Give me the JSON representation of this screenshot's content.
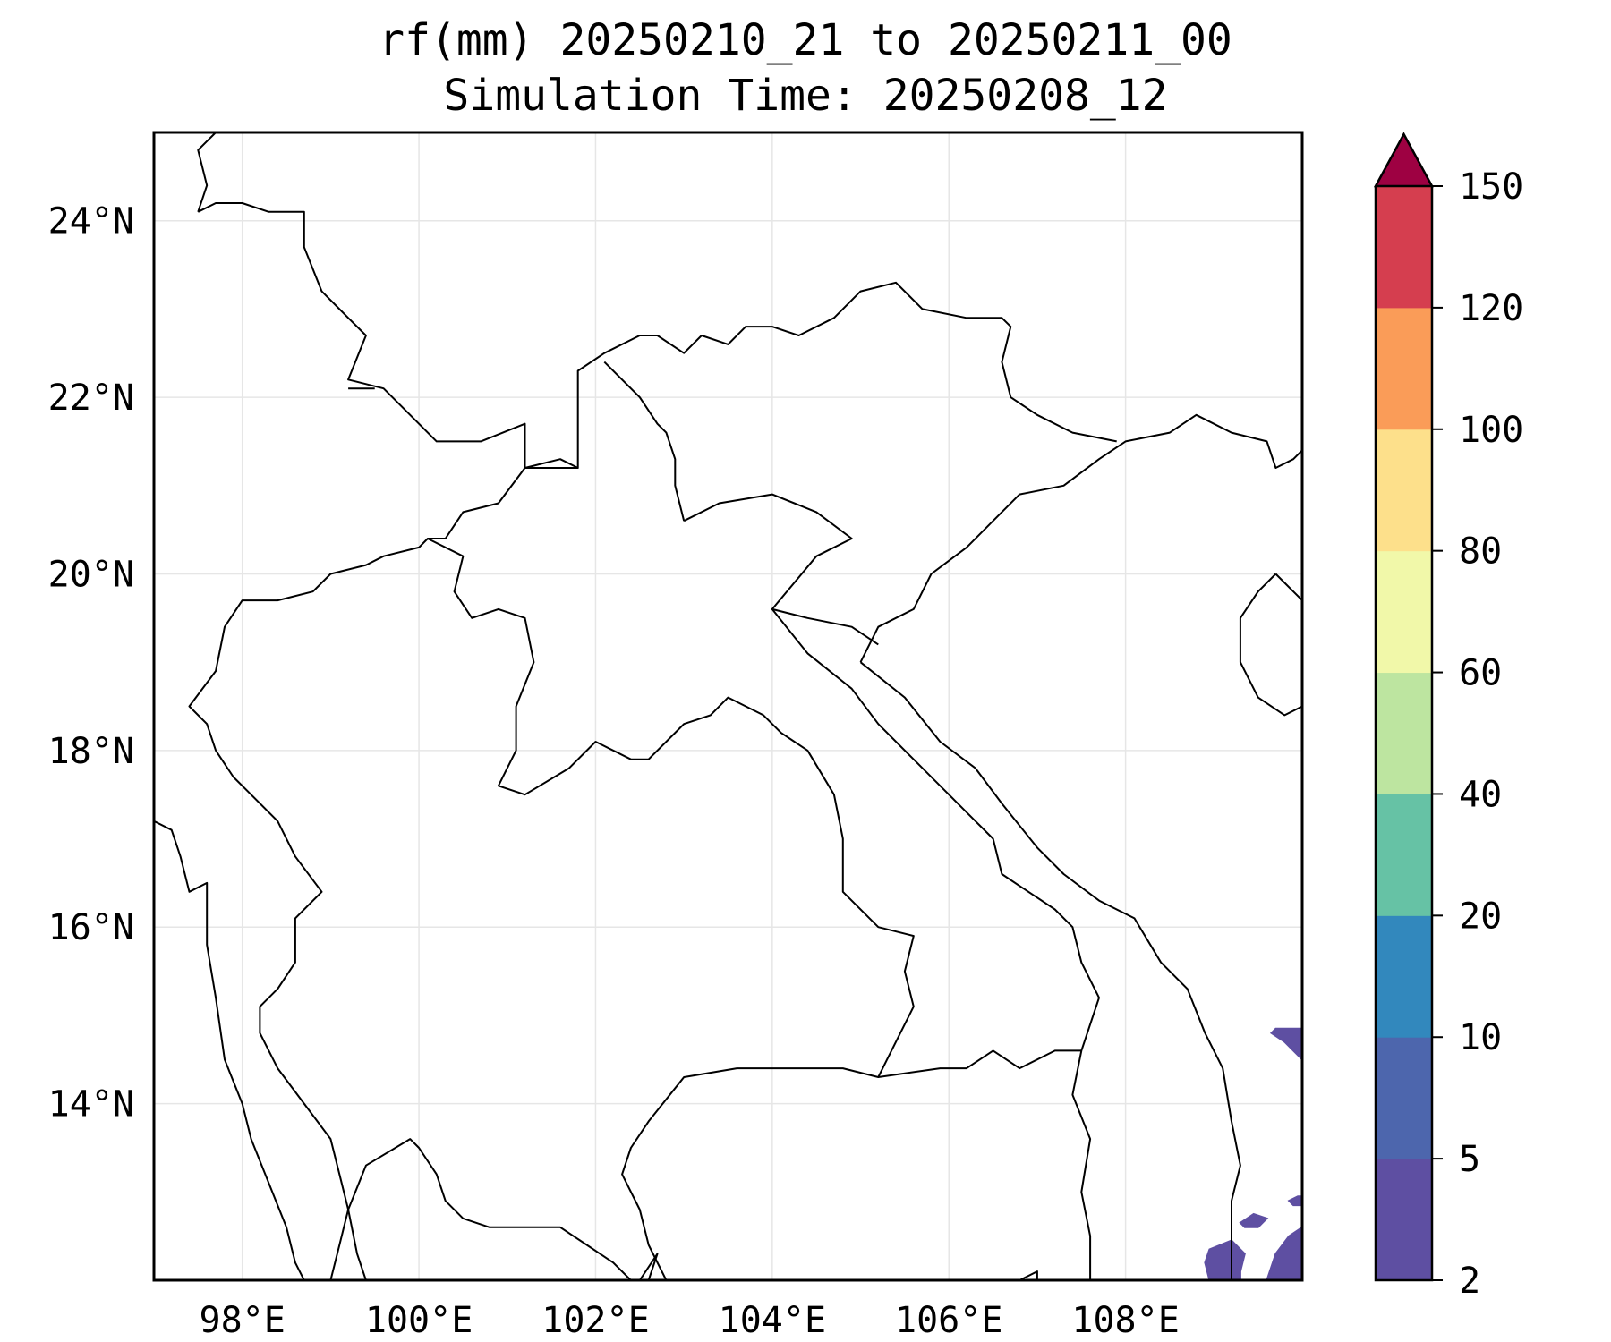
{
  "title": {
    "line1": "rf(mm) 20250210_21 to 20250211_00",
    "line2": "Simulation Time: 20250208_12"
  },
  "map": {
    "lon_range": [
      97.0,
      110.0
    ],
    "lat_range": [
      12.0,
      25.0
    ],
    "lon_ticks": [
      98,
      100,
      102,
      104,
      106,
      108
    ],
    "lat_ticks": [
      14,
      16,
      18,
      20,
      22,
      24
    ],
    "lon_tick_labels": [
      "98°E",
      "100°E",
      "102°E",
      "104°E",
      "106°E",
      "108°E"
    ],
    "lat_tick_labels": [
      "14°N",
      "16°N",
      "18°N",
      "20°N",
      "22°N",
      "24°N"
    ],
    "gridlines": true,
    "coastline_color": "#000000"
  },
  "colorbar": {
    "levels": [
      "2",
      "5",
      "10",
      "20",
      "40",
      "60",
      "80",
      "100",
      "120",
      "150"
    ],
    "colors": [
      "#5e4fa2",
      "#4d66ad",
      "#3288bd",
      "#66c2a5",
      "#bde5a0",
      "#f1f8a9",
      "#fde08b",
      "#fa9c58",
      "#d53e4f"
    ],
    "extend_color": "#9e0142",
    "extend": "max",
    "placement": "right"
  },
  "rain_areas": [
    {
      "name": "south-china-sea-east",
      "level": "2-5",
      "color": "#5e4fa2",
      "lonlat": [
        [
          108.95,
          12.0
        ],
        [
          108.9,
          12.2
        ],
        [
          108.95,
          12.35
        ],
        [
          109.2,
          12.45
        ],
        [
          109.35,
          12.3
        ],
        [
          109.3,
          12.1
        ],
        [
          109.3,
          12.0
        ]
      ]
    },
    {
      "name": "offshore-cluster",
      "level": "2-5",
      "color": "#5e4fa2",
      "lonlat": [
        [
          109.3,
          12.65
        ],
        [
          109.45,
          12.75
        ],
        [
          109.6,
          12.7
        ],
        [
          109.5,
          12.6
        ],
        [
          109.35,
          12.6
        ]
      ]
    },
    {
      "name": "east-edge-south",
      "level": "2-5",
      "color": "#5e4fa2",
      "lonlat": [
        [
          109.6,
          12.0
        ],
        [
          109.7,
          12.3
        ],
        [
          109.85,
          12.5
        ],
        [
          110.0,
          12.6
        ],
        [
          110.0,
          12.0
        ]
      ]
    },
    {
      "name": "east-edge-mid",
      "level": "2-5",
      "color": "#5e4fa2",
      "lonlat": [
        [
          109.85,
          12.9
        ],
        [
          109.95,
          12.95
        ],
        [
          110.0,
          12.95
        ],
        [
          110.0,
          12.85
        ],
        [
          109.9,
          12.85
        ]
      ]
    },
    {
      "name": "east-edge-north",
      "level": "2-5",
      "color": "#5e4fa2",
      "lonlat": [
        [
          109.65,
          14.8
        ],
        [
          109.8,
          14.7
        ],
        [
          110.0,
          14.5
        ],
        [
          110.0,
          14.85
        ],
        [
          109.7,
          14.85
        ]
      ]
    }
  ],
  "coastlines": [
    [
      [
        97.0,
        17.2
      ],
      [
        97.2,
        17.1
      ],
      [
        97.3,
        16.8
      ],
      [
        97.4,
        16.4
      ],
      [
        97.6,
        16.5
      ],
      [
        97.6,
        15.8
      ],
      [
        97.7,
        15.2
      ],
      [
        97.8,
        14.5
      ],
      [
        98.0,
        14.0
      ],
      [
        98.1,
        13.6
      ],
      [
        98.3,
        13.1
      ],
      [
        98.5,
        12.6
      ],
      [
        98.6,
        12.2
      ],
      [
        98.7,
        12.0
      ]
    ],
    [
      [
        99.0,
        12.0
      ],
      [
        99.1,
        12.4
      ],
      [
        99.2,
        12.8
      ],
      [
        99.4,
        13.3
      ],
      [
        99.9,
        13.6
      ],
      [
        100.0,
        13.5
      ],
      [
        100.2,
        13.2
      ],
      [
        100.3,
        12.9
      ],
      [
        100.5,
        12.7
      ],
      [
        100.8,
        12.6
      ],
      [
        101.2,
        12.6
      ],
      [
        101.6,
        12.6
      ],
      [
        101.9,
        12.4
      ],
      [
        102.2,
        12.2
      ],
      [
        102.4,
        12.0
      ]
    ],
    [
      [
        102.5,
        12.0
      ],
      [
        102.7,
        12.3
      ],
      [
        102.6,
        12.0
      ]
    ],
    [
      [
        104.7,
        12.0
      ],
      [
        105.2,
        12.0
      ]
    ],
    [
      [
        106.8,
        12.0
      ],
      [
        107.0,
        12.1
      ],
      [
        107.0,
        12.0
      ]
    ],
    [
      [
        105.0,
        19.0
      ],
      [
        105.2,
        19.4
      ],
      [
        105.6,
        19.6
      ],
      [
        105.8,
        20.0
      ],
      [
        106.2,
        20.3
      ],
      [
        106.5,
        20.6
      ],
      [
        106.8,
        20.9
      ],
      [
        107.3,
        21.0
      ],
      [
        107.7,
        21.3
      ],
      [
        108.0,
        21.5
      ],
      [
        108.5,
        21.6
      ],
      [
        108.8,
        21.8
      ],
      [
        109.2,
        21.6
      ],
      [
        109.6,
        21.5
      ],
      [
        109.7,
        21.2
      ],
      [
        109.9,
        21.3
      ],
      [
        110.0,
        21.4
      ]
    ],
    [
      [
        105.0,
        19.0
      ],
      [
        105.5,
        18.6
      ],
      [
        105.9,
        18.1
      ],
      [
        106.3,
        17.8
      ],
      [
        106.6,
        17.4
      ],
      [
        107.0,
        16.9
      ],
      [
        107.3,
        16.6
      ],
      [
        107.7,
        16.3
      ],
      [
        108.1,
        16.1
      ],
      [
        108.4,
        15.6
      ],
      [
        108.7,
        15.3
      ],
      [
        108.9,
        14.8
      ],
      [
        109.1,
        14.4
      ],
      [
        109.2,
        13.8
      ],
      [
        109.3,
        13.3
      ],
      [
        109.2,
        12.9
      ],
      [
        109.2,
        12.5
      ],
      [
        109.2,
        12.0
      ]
    ],
    [
      [
        109.7,
        20.0
      ],
      [
        109.9,
        19.8
      ],
      [
        110.0,
        19.7
      ]
    ],
    [
      [
        109.7,
        20.0
      ],
      [
        109.5,
        19.8
      ],
      [
        109.3,
        19.5
      ],
      [
        109.3,
        19.0
      ],
      [
        109.5,
        18.6
      ],
      [
        109.8,
        18.4
      ],
      [
        110.0,
        18.5
      ]
    ]
  ],
  "borders": [
    [
      [
        97.5,
        24.1
      ],
      [
        97.7,
        24.2
      ],
      [
        98.0,
        24.2
      ],
      [
        98.3,
        24.1
      ],
      [
        98.7,
        24.1
      ],
      [
        98.7,
        23.7
      ],
      [
        98.9,
        23.2
      ],
      [
        99.2,
        22.9
      ],
      [
        99.4,
        22.7
      ],
      [
        99.2,
        22.2
      ],
      [
        99.6,
        22.1
      ],
      [
        100.0,
        21.7
      ],
      [
        100.2,
        21.5
      ],
      [
        100.7,
        21.5
      ],
      [
        101.2,
        21.7
      ],
      [
        101.2,
        21.2
      ],
      [
        101.6,
        21.3
      ],
      [
        101.8,
        21.2
      ],
      [
        101.8,
        21.7
      ],
      [
        101.8,
        22.3
      ],
      [
        102.1,
        22.5
      ],
      [
        102.5,
        22.7
      ],
      [
        102.7,
        22.7
      ],
      [
        103.0,
        22.5
      ],
      [
        103.2,
        22.7
      ],
      [
        103.5,
        22.6
      ],
      [
        103.7,
        22.8
      ],
      [
        104.0,
        22.8
      ],
      [
        104.3,
        22.7
      ],
      [
        104.7,
        22.9
      ],
      [
        105.0,
        23.2
      ],
      [
        105.4,
        23.3
      ],
      [
        105.7,
        23.0
      ],
      [
        106.2,
        22.9
      ],
      [
        106.6,
        22.9
      ],
      [
        106.7,
        22.8
      ],
      [
        106.6,
        22.4
      ],
      [
        106.7,
        22.0
      ],
      [
        107.0,
        21.8
      ],
      [
        107.4,
        21.6
      ],
      [
        107.9,
        21.5
      ]
    ],
    [
      [
        97.5,
        24.1
      ],
      [
        97.6,
        24.4
      ],
      [
        97.5,
        24.8
      ],
      [
        97.7,
        25.0
      ]
    ],
    [
      [
        99.2,
        22.1
      ],
      [
        99.5,
        22.1
      ]
    ],
    [
      [
        101.8,
        21.2
      ],
      [
        101.2,
        21.2
      ],
      [
        100.9,
        20.8
      ],
      [
        100.5,
        20.7
      ],
      [
        100.3,
        20.4
      ],
      [
        100.1,
        20.4
      ],
      [
        100.0,
        20.3
      ],
      [
        99.6,
        20.2
      ],
      [
        99.4,
        20.1
      ],
      [
        99.0,
        20.0
      ],
      [
        98.8,
        19.8
      ],
      [
        98.4,
        19.7
      ],
      [
        98.0,
        19.7
      ],
      [
        97.8,
        19.4
      ],
      [
        97.7,
        18.9
      ],
      [
        97.4,
        18.5
      ],
      [
        97.6,
        18.3
      ],
      [
        97.7,
        18.0
      ],
      [
        97.9,
        17.7
      ],
      [
        98.1,
        17.5
      ],
      [
        98.4,
        17.2
      ],
      [
        98.6,
        16.8
      ],
      [
        98.9,
        16.4
      ],
      [
        98.6,
        16.1
      ],
      [
        98.6,
        15.6
      ],
      [
        98.4,
        15.3
      ],
      [
        98.2,
        15.1
      ],
      [
        98.2,
        14.8
      ],
      [
        98.4,
        14.4
      ],
      [
        98.7,
        14.0
      ],
      [
        99.0,
        13.6
      ],
      [
        99.1,
        13.2
      ],
      [
        99.2,
        12.8
      ],
      [
        99.3,
        12.3
      ],
      [
        99.4,
        12.0
      ]
    ],
    [
      [
        100.1,
        20.4
      ],
      [
        100.5,
        20.2
      ],
      [
        100.4,
        19.8
      ],
      [
        100.6,
        19.5
      ],
      [
        100.9,
        19.6
      ],
      [
        101.2,
        19.5
      ],
      [
        101.3,
        19.0
      ],
      [
        101.1,
        18.5
      ],
      [
        101.1,
        18.0
      ],
      [
        100.9,
        17.6
      ],
      [
        101.2,
        17.5
      ],
      [
        101.7,
        17.8
      ],
      [
        102.0,
        18.1
      ],
      [
        102.4,
        17.9
      ],
      [
        102.6,
        17.9
      ],
      [
        103.0,
        18.3
      ],
      [
        103.3,
        18.4
      ],
      [
        103.5,
        18.6
      ],
      [
        103.9,
        18.4
      ],
      [
        104.1,
        18.2
      ],
      [
        104.4,
        18.0
      ],
      [
        104.7,
        17.5
      ],
      [
        104.8,
        17.0
      ],
      [
        104.8,
        16.4
      ],
      [
        105.2,
        16.0
      ],
      [
        105.6,
        15.9
      ],
      [
        105.5,
        15.5
      ],
      [
        105.6,
        15.1
      ],
      [
        105.3,
        14.5
      ],
      [
        105.2,
        14.3
      ],
      [
        104.8,
        14.4
      ],
      [
        104.3,
        14.4
      ],
      [
        103.6,
        14.4
      ],
      [
        103.0,
        14.3
      ],
      [
        102.6,
        13.8
      ],
      [
        102.4,
        13.5
      ],
      [
        102.3,
        13.2
      ],
      [
        102.5,
        12.8
      ],
      [
        102.6,
        12.4
      ],
      [
        102.8,
        12.0
      ]
    ],
    [
      [
        103.0,
        20.6
      ],
      [
        103.4,
        20.8
      ],
      [
        104.0,
        20.9
      ],
      [
        104.5,
        20.7
      ],
      [
        104.9,
        20.4
      ],
      [
        104.5,
        20.2
      ],
      [
        104.0,
        19.6
      ],
      [
        104.4,
        19.5
      ],
      [
        104.9,
        19.4
      ],
      [
        105.2,
        19.2
      ]
    ],
    [
      [
        102.1,
        22.4
      ],
      [
        102.5,
        22.0
      ],
      [
        102.7,
        21.7
      ],
      [
        102.8,
        21.6
      ],
      [
        102.9,
        21.3
      ],
      [
        102.9,
        21.0
      ],
      [
        103.0,
        20.6
      ]
    ],
    [
      [
        104.0,
        19.6
      ],
      [
        104.4,
        19.1
      ],
      [
        104.9,
        18.7
      ],
      [
        105.2,
        18.3
      ],
      [
        105.6,
        17.9
      ],
      [
        105.9,
        17.6
      ],
      [
        106.2,
        17.3
      ],
      [
        106.5,
        17.0
      ],
      [
        106.6,
        16.6
      ],
      [
        106.9,
        16.4
      ],
      [
        107.2,
        16.2
      ],
      [
        107.4,
        16.0
      ],
      [
        107.5,
        15.6
      ],
      [
        107.7,
        15.2
      ],
      [
        107.5,
        14.6
      ],
      [
        107.4,
        14.1
      ],
      [
        107.6,
        13.6
      ],
      [
        107.5,
        13.0
      ],
      [
        107.6,
        12.5
      ],
      [
        107.6,
        12.0
      ]
    ],
    [
      [
        105.2,
        14.3
      ],
      [
        105.9,
        14.4
      ],
      [
        106.2,
        14.4
      ],
      [
        106.5,
        14.6
      ],
      [
        106.8,
        14.4
      ],
      [
        107.2,
        14.6
      ],
      [
        107.5,
        14.6
      ]
    ]
  ]
}
